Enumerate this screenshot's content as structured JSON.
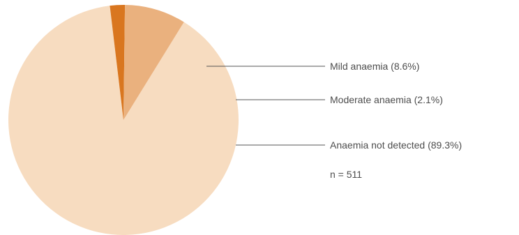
{
  "chart_data": {
    "type": "pie",
    "title": "",
    "slices": [
      {
        "label": "Anaemia not detected (89.3%)",
        "value": 89.3,
        "color": "#f7dcc0"
      },
      {
        "label": "Moderate anaemia (2.1%)",
        "value": 2.1,
        "color": "#d9761f"
      },
      {
        "label": "Mild anaemia (8.6%)",
        "value": 8.6,
        "color": "#eab17e"
      }
    ],
    "note": "n = 511",
    "leader_color": "#555555",
    "legend_placement": "right"
  }
}
